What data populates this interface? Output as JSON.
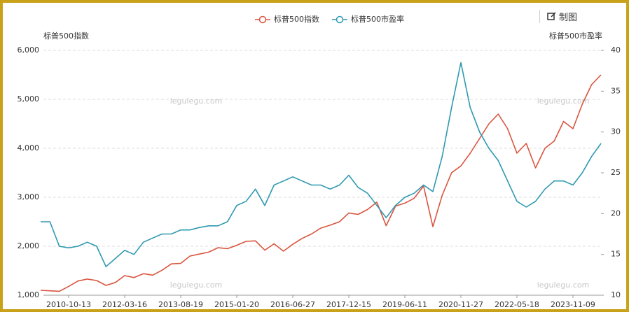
{
  "chart_data": {
    "type": "line",
    "legend": "top",
    "toolbar": "制图",
    "y_label": "标普500指数",
    "y2_label": "标普500市盈率",
    "watermarks": [
      "legulegu.com",
      "legulegu.com",
      "legulegu.com",
      "legulegu.com"
    ],
    "categories": [
      null,
      null,
      null,
      "2010-10-13",
      null,
      null,
      null,
      null,
      null,
      "2012-03-16",
      null,
      null,
      null,
      null,
      null,
      "2013-08-19",
      null,
      null,
      null,
      null,
      null,
      "2015-01-20",
      null,
      null,
      null,
      null,
      null,
      "2016-06-27",
      null,
      null,
      null,
      null,
      null,
      "2017-12-15",
      null,
      null,
      null,
      null,
      null,
      "2019-06-11",
      null,
      null,
      null,
      null,
      null,
      "2020-11-27",
      null,
      null,
      null,
      null,
      null,
      "2022-05-18",
      null,
      null,
      null,
      null,
      null,
      "2023-11-09",
      null,
      null,
      null
    ],
    "series": [
      {
        "name": "标普500指数",
        "color": "#d9553f",
        "axis": "y",
        "values": [
          1100,
          1090,
          1080,
          1180,
          1290,
          1330,
          1300,
          1200,
          1260,
          1400,
          1360,
          1440,
          1410,
          1510,
          1640,
          1650,
          1800,
          1840,
          1880,
          1970,
          1950,
          2020,
          2100,
          2110,
          1920,
          2050,
          1900,
          2040,
          2160,
          2250,
          2370,
          2430,
          2500,
          2680,
          2650,
          2750,
          2900,
          2420,
          2820,
          2880,
          2980,
          3230,
          2400,
          3040,
          3500,
          3640,
          3900,
          4200,
          4500,
          4700,
          4400,
          3900,
          4100,
          3600,
          4000,
          4150,
          4550,
          4400,
          4900,
          5300,
          5500
        ]
      },
      {
        "name": "标普500市盈率",
        "color": "#2e99b0",
        "axis": "y2",
        "values": [
          19,
          19,
          16,
          15.8,
          16,
          16.5,
          16,
          13.5,
          14.5,
          15.5,
          15,
          16.5,
          17,
          17.5,
          17.5,
          18,
          18,
          18.3,
          18.5,
          18.5,
          19,
          21,
          21.5,
          23,
          21,
          23.5,
          24,
          24.5,
          24,
          23.5,
          23.5,
          23,
          23.5,
          24.7,
          23.2,
          22.5,
          21,
          19.5,
          21,
          22,
          22.5,
          23.5,
          22.7,
          27,
          33,
          38.5,
          33,
          30,
          28,
          26.5,
          24,
          21.5,
          20.8,
          21.5,
          23,
          24,
          24,
          23.5,
          25,
          27,
          28.6
        ]
      }
    ],
    "ylim": [
      1000,
      6000
    ],
    "yticks": [
      {
        "value": 1000,
        "label": "1,000"
      },
      {
        "value": 2000,
        "label": "2,000"
      },
      {
        "value": 3000,
        "label": "3,000"
      },
      {
        "value": 4000,
        "label": "4,000"
      },
      {
        "value": 5000,
        "label": "5,000"
      },
      {
        "value": 6000,
        "label": "6,000"
      }
    ],
    "y2lim": [
      10,
      40
    ],
    "y2ticks": [
      10,
      15,
      20,
      25,
      30,
      35,
      40
    ],
    "grid": true
  }
}
